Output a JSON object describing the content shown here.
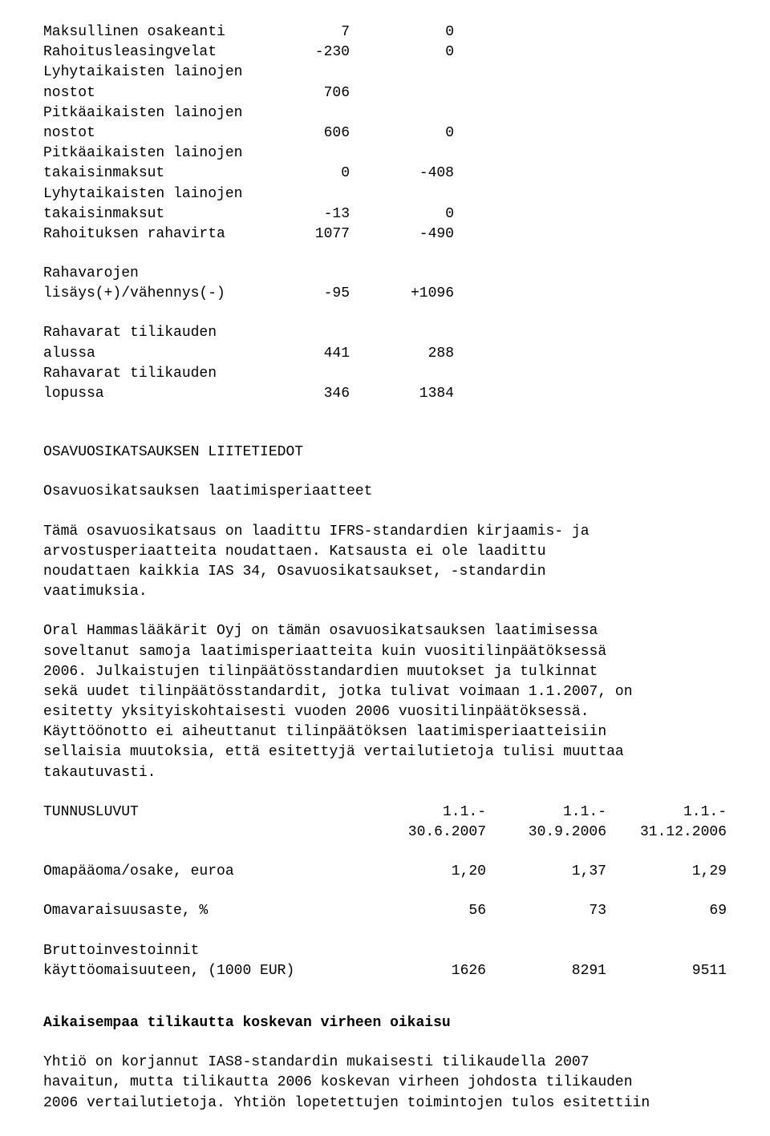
{
  "cashflow": {
    "rows": [
      {
        "label": "Maksullinen osakeanti",
        "c1": "7",
        "c2": "0"
      },
      {
        "label": "Rahoitusleasingvelat",
        "c1": "-230",
        "c2": "0"
      },
      {
        "label": "Lyhytaikaisten lainojen",
        "c1": "",
        "c2": ""
      },
      {
        "label": "nostot",
        "c1": "706",
        "c2": ""
      },
      {
        "label": "Pitkäaikaisten lainojen",
        "c1": "",
        "c2": ""
      },
      {
        "label": "nostot",
        "c1": "606",
        "c2": "0"
      },
      {
        "label": "Pitkäaikaisten lainojen",
        "c1": "",
        "c2": ""
      },
      {
        "label": "takaisinmaksut",
        "c1": "0",
        "c2": "-408"
      },
      {
        "label": "Lyhytaikaisten lainojen",
        "c1": "",
        "c2": ""
      },
      {
        "label": "takaisinmaksut",
        "c1": "-13",
        "c2": "0"
      },
      {
        "label": "Rahoituksen rahavirta",
        "c1": "1077",
        "c2": "-490"
      }
    ],
    "cash": {
      "line1": {
        "label": "Rahavarojen",
        "c1": "",
        "c2": ""
      },
      "line2": {
        "label": "lisäys(+)/vähennys(-)",
        "c1": "-95",
        "c2": "+1096"
      }
    },
    "period": [
      {
        "label": "Rahavarat tilikauden",
        "c1": "",
        "c2": ""
      },
      {
        "label": "alussa",
        "c1": "441",
        "c2": "288"
      },
      {
        "label": "Rahavarat tilikauden",
        "c1": "",
        "c2": ""
      },
      {
        "label": "lopussa",
        "c1": "346",
        "c2": "1384"
      }
    ]
  },
  "notes": {
    "title": "OSAVUOSIKATSAUKSEN LIITETIEDOT",
    "subtitle": "Osavuosikatsauksen laatimisperiaatteet",
    "p1": "Tämä osavuosikatsaus on laadittu IFRS-standardien kirjaamis- ja\narvostusperiaatteita noudattaen. Katsausta ei ole laadittu\nnoudattaen kaikkia IAS 34, Osavuosikatsaukset, -standardin\nvaatimuksia.",
    "p2": "Oral Hammaslääkärit Oyj on tämän osavuosikatsauksen laatimisessa\nsoveltanut samoja laatimisperiaatteita kuin vuositilinpäätöksessä\n2006. Julkaistujen tilinpäätösstandardien muutokset ja tulkinnat\nsekä uudet tilinpäätösstandardit, jotka tulivat voimaan 1.1.2007, on\nesitetty yksityiskohtaisesti vuoden 2006 vuositilinpäätöksessä.\nKäyttöönotto ei aiheuttanut tilinpäätöksen laatimisperiaatteisiin\nsellaisia muutoksia, että esitettyjä vertailutietoja tulisi muuttaa\ntakautuvasti."
  },
  "keyfigures": {
    "title": "TUNNUSLUVUT",
    "cols": {
      "h1a": "1.1.-",
      "h1b": "30.6.2007",
      "h2a": "1.1.-",
      "h2b": "30.9.2006",
      "h3a": "1.1.-",
      "h3b": "31.12.2006"
    },
    "rows": [
      {
        "label": "Omapääoma/osake, euroa",
        "v1": "1,20",
        "v2": "1,37",
        "v3": "1,29"
      },
      {
        "label": "Omavaraisuusaste, %",
        "v1": "56",
        "v2": "73",
        "v3": "69"
      }
    ],
    "invest": {
      "l1": "Bruttoinvestoinnit",
      "l2": "käyttöomaisuuteen, (1000 EUR)",
      "v1": "1626",
      "v2": "8291",
      "v3": "9511"
    }
  },
  "correction": {
    "heading": "Aikaisempaa tilikautta koskevan virheen oikaisu",
    "p": "Yhtiö on korjannut IAS8-standardin mukaisesti tilikaudella 2007\nhavaitun, mutta tilikautta 2006 koskevan virheen johdosta tilikauden\n2006 vertailutietoja. Yhtiön lopetettujen toimintojen tulos esitettiin"
  }
}
